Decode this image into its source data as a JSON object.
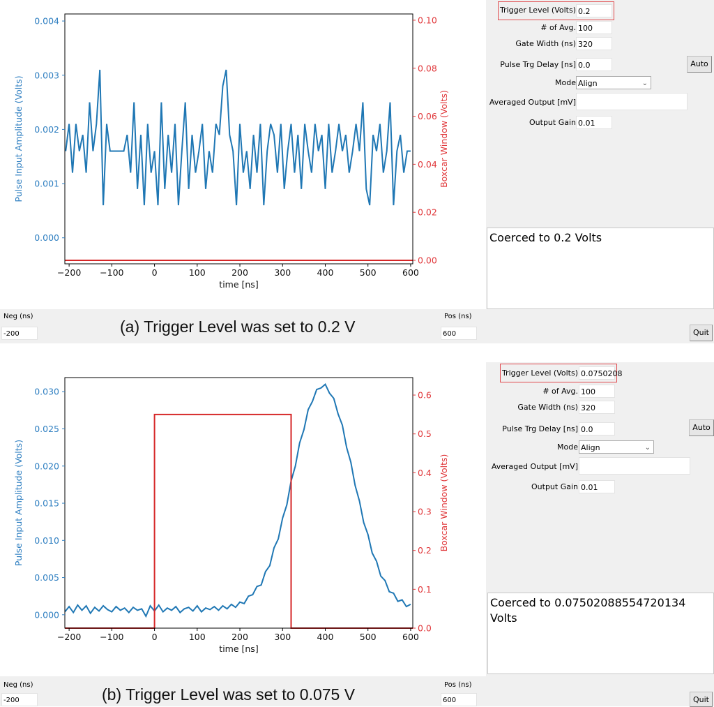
{
  "panels": [
    {
      "controls": {
        "trigger_label": "Trigger Level (Volts)",
        "trigger_value": "0.2",
        "avg_label": "# of Avg.",
        "avg_value": "100",
        "gate_label": "Gate Width (ns)",
        "gate_value": "320",
        "delay_label": "Pulse Trg Delay [ns]",
        "delay_value": "0.0",
        "auto_label": "Auto",
        "mode_label": "Mode",
        "mode_value": "Align",
        "averaged_label": "Averaged Output [mV]",
        "averaged_value": "",
        "gain_label": "Output Gain",
        "gain_value": "0.01",
        "message": "Coerced to 0.2 Volts",
        "neg_label": "Neg (ns)",
        "neg_value": "-200",
        "pos_label": "Pos (ns)",
        "pos_value": "600",
        "quit_label": "Quit"
      },
      "caption": "(a) Trigger Level was set to 0.2 V"
    },
    {
      "controls": {
        "trigger_label": "Trigger Level (Volts)",
        "trigger_value": "0.0750208",
        "avg_label": "# of Avg.",
        "avg_value": "100",
        "gate_label": "Gate Width (ns)",
        "gate_value": "320",
        "delay_label": "Pulse Trg Delay [ns]",
        "delay_value": "0.0",
        "auto_label": "Auto",
        "mode_label": "Mode",
        "mode_value": "Align",
        "averaged_label": "Averaged Output [mV]",
        "averaged_value": "",
        "gain_label": "Output Gain",
        "gain_value": "0.01",
        "message": "Coerced to 0.07502088554720134 Volts",
        "neg_label": "Neg (ns)",
        "neg_value": "-200",
        "pos_label": "Pos (ns)",
        "pos_value": "600",
        "quit_label": "Quit"
      },
      "caption": "(b) Trigger Level was set to 0.075 V"
    }
  ],
  "colors": {
    "blue": "#1f77b4",
    "red": "#d62728",
    "blue_text": "#2f7fc1",
    "red_text": "#e0373a"
  },
  "chart_data": [
    {
      "type": "line",
      "xlabel": "time [ns]",
      "ylabel_left": "Pulse Input Amplitude (Volts)",
      "ylabel_right": "Boxcar Window (Volts)",
      "xlim": [
        -210,
        605
      ],
      "ylim_left": [
        -0.00048,
        0.00413
      ],
      "ylim_right": [
        -0.00145,
        0.1026
      ],
      "x_ticks": [
        "−200",
        "−100",
        "0",
        "100",
        "200",
        "300",
        "400",
        "500",
        "600"
      ],
      "x_tick_values": [
        -200,
        -100,
        0,
        100,
        200,
        300,
        400,
        500,
        600
      ],
      "y_left_ticks": [
        "0.000",
        "0.001",
        "0.002",
        "0.003",
        "0.004"
      ],
      "y_left_tick_values": [
        0,
        0.001,
        0.002,
        0.003,
        0.004
      ],
      "y_right_ticks": [
        "0.00",
        "0.02",
        "0.04",
        "0.06",
        "0.08",
        "0.10"
      ],
      "y_right_tick_values": [
        0,
        0.02,
        0.04,
        0.06,
        0.08,
        0.1
      ],
      "series": [
        {
          "axis": "left",
          "color": "#1f77b4",
          "x": [
            -208,
            -200,
            -192,
            -184,
            -176,
            -168,
            -160,
            -152,
            -144,
            -136,
            -128,
            -120,
            -112,
            -104,
            -96,
            -88,
            -80,
            -72,
            -64,
            -56,
            -48,
            -40,
            -32,
            -24,
            -16,
            -8,
            0,
            8,
            16,
            24,
            32,
            40,
            48,
            56,
            64,
            72,
            80,
            88,
            96,
            104,
            112,
            120,
            128,
            136,
            144,
            152,
            160,
            168,
            176,
            184,
            192,
            200,
            208,
            216,
            224,
            232,
            240,
            248,
            256,
            264,
            272,
            280,
            288,
            296,
            304,
            312,
            320,
            328,
            336,
            344,
            352,
            360,
            368,
            376,
            384,
            392,
            400,
            408,
            416,
            424,
            432,
            440,
            448,
            456,
            464,
            472,
            480,
            488,
            496,
            504,
            512,
            520,
            528,
            536,
            544,
            552,
            560,
            568,
            576,
            584,
            592,
            600
          ],
          "y": [
            0.0016,
            0.0021,
            0.0012,
            0.0021,
            0.0016,
            0.0019,
            0.0012,
            0.0025,
            0.0016,
            0.0021,
            0.0031,
            0.0006,
            0.0021,
            0.0016,
            0.0016,
            0.0016,
            0.0016,
            0.0016,
            0.0019,
            0.0012,
            0.0025,
            0.0009,
            0.0019,
            0.0006,
            0.0021,
            0.0012,
            0.0016,
            0.0006,
            0.0025,
            0.0009,
            0.0019,
            0.0012,
            0.0021,
            0.0006,
            0.0016,
            0.0025,
            0.0009,
            0.0019,
            0.0012,
            0.0016,
            0.0021,
            0.0009,
            0.0016,
            0.0012,
            0.0021,
            0.0019,
            0.0028,
            0.0031,
            0.0019,
            0.0016,
            0.0006,
            0.0021,
            0.0012,
            0.0016,
            0.0009,
            0.0019,
            0.0012,
            0.0021,
            0.0006,
            0.0016,
            0.0021,
            0.0019,
            0.0012,
            0.0021,
            0.0009,
            0.0016,
            0.0021,
            0.0012,
            0.0019,
            0.0009,
            0.0021,
            0.0016,
            0.0012,
            0.0021,
            0.0016,
            0.0019,
            0.0009,
            0.0021,
            0.0012,
            0.0016,
            0.0021,
            0.0016,
            0.0019,
            0.0012,
            0.0016,
            0.0021,
            0.0016,
            0.0025,
            0.0009,
            0.0006,
            0.0019,
            0.0016,
            0.0021,
            0.0012,
            0.0016,
            0.0025,
            0.0006,
            0.0016,
            0.0019,
            0.0012,
            0.0016,
            0.0016
          ]
        },
        {
          "axis": "right",
          "color": "#d62728",
          "x": [
            -210,
            605
          ],
          "y": [
            0,
            0
          ]
        }
      ]
    },
    {
      "type": "line",
      "xlabel": "time [ns]",
      "ylabel_left": "Pulse Input Amplitude (Volts)",
      "ylabel_right": "Boxcar Window (Volts)",
      "xlim": [
        -210,
        605
      ],
      "ylim_left": [
        -0.0018,
        0.0319
      ],
      "ylim_right": [
        0,
        0.645
      ],
      "x_ticks": [
        "−200",
        "−100",
        "0",
        "100",
        "200",
        "300",
        "400",
        "500",
        "600"
      ],
      "x_tick_values": [
        -200,
        -100,
        0,
        100,
        200,
        300,
        400,
        500,
        600
      ],
      "y_left_ticks": [
        "0.000",
        "0.005",
        "0.010",
        "0.015",
        "0.020",
        "0.025",
        "0.030"
      ],
      "y_left_tick_values": [
        0,
        0.005,
        0.01,
        0.015,
        0.02,
        0.025,
        0.03
      ],
      "y_right_ticks": [
        "0.0",
        "0.1",
        "0.2",
        "0.3",
        "0.4",
        "0.5",
        "0.6"
      ],
      "y_right_tick_values": [
        0,
        0.1,
        0.2,
        0.3,
        0.4,
        0.5,
        0.6
      ],
      "series": [
        {
          "axis": "left",
          "color": "#1f77b4",
          "x": [
            -210,
            -200,
            -190,
            -180,
            -170,
            -160,
            -150,
            -140,
            -130,
            -120,
            -110,
            -100,
            -90,
            -80,
            -70,
            -60,
            -50,
            -40,
            -30,
            -20,
            -10,
            0,
            10,
            20,
            30,
            40,
            50,
            60,
            70,
            80,
            90,
            100,
            110,
            120,
            130,
            140,
            150,
            160,
            170,
            180,
            190,
            200,
            210,
            220,
            230,
            240,
            250,
            260,
            270,
            280,
            290,
            300,
            310,
            320,
            330,
            340,
            350,
            360,
            370,
            380,
            390,
            400,
            410,
            420,
            430,
            440,
            450,
            460,
            470,
            480,
            490,
            500,
            510,
            520,
            530,
            540,
            550,
            560,
            570,
            580,
            590,
            600
          ],
          "y": [
            0.0004,
            0.0011,
            0.0003,
            0.0013,
            0.0006,
            0.0012,
            0.0002,
            0.001,
            0.0005,
            0.0012,
            0.0007,
            0.0004,
            0.0011,
            0.0006,
            0.0009,
            0.0003,
            0.001,
            0.0006,
            0.0008,
            -0.0002,
            0.0012,
            0.0005,
            0.0013,
            0.0004,
            0.0009,
            0.0006,
            0.0011,
            0.0003,
            0.0008,
            0.001,
            0.0005,
            0.0012,
            0.0004,
            0.0009,
            0.0007,
            0.0011,
            0.0006,
            0.0012,
            0.0008,
            0.0014,
            0.001,
            0.0017,
            0.0015,
            0.0025,
            0.0027,
            0.0038,
            0.004,
            0.0058,
            0.0066,
            0.009,
            0.0102,
            0.013,
            0.0148,
            0.018,
            0.02,
            0.0231,
            0.0249,
            0.0276,
            0.0287,
            0.0303,
            0.0305,
            0.031,
            0.0298,
            0.0291,
            0.027,
            0.0255,
            0.0225,
            0.0205,
            0.0174,
            0.0153,
            0.0124,
            0.0108,
            0.0083,
            0.0072,
            0.0052,
            0.0046,
            0.0031,
            0.0029,
            0.0018,
            0.002,
            0.0011,
            0.0014
          ]
        },
        {
          "axis": "right",
          "color": "#d62728",
          "x": [
            -210,
            0,
            0,
            320,
            320,
            605
          ],
          "y": [
            0,
            0,
            0.55,
            0.55,
            0,
            0
          ]
        }
      ]
    }
  ]
}
